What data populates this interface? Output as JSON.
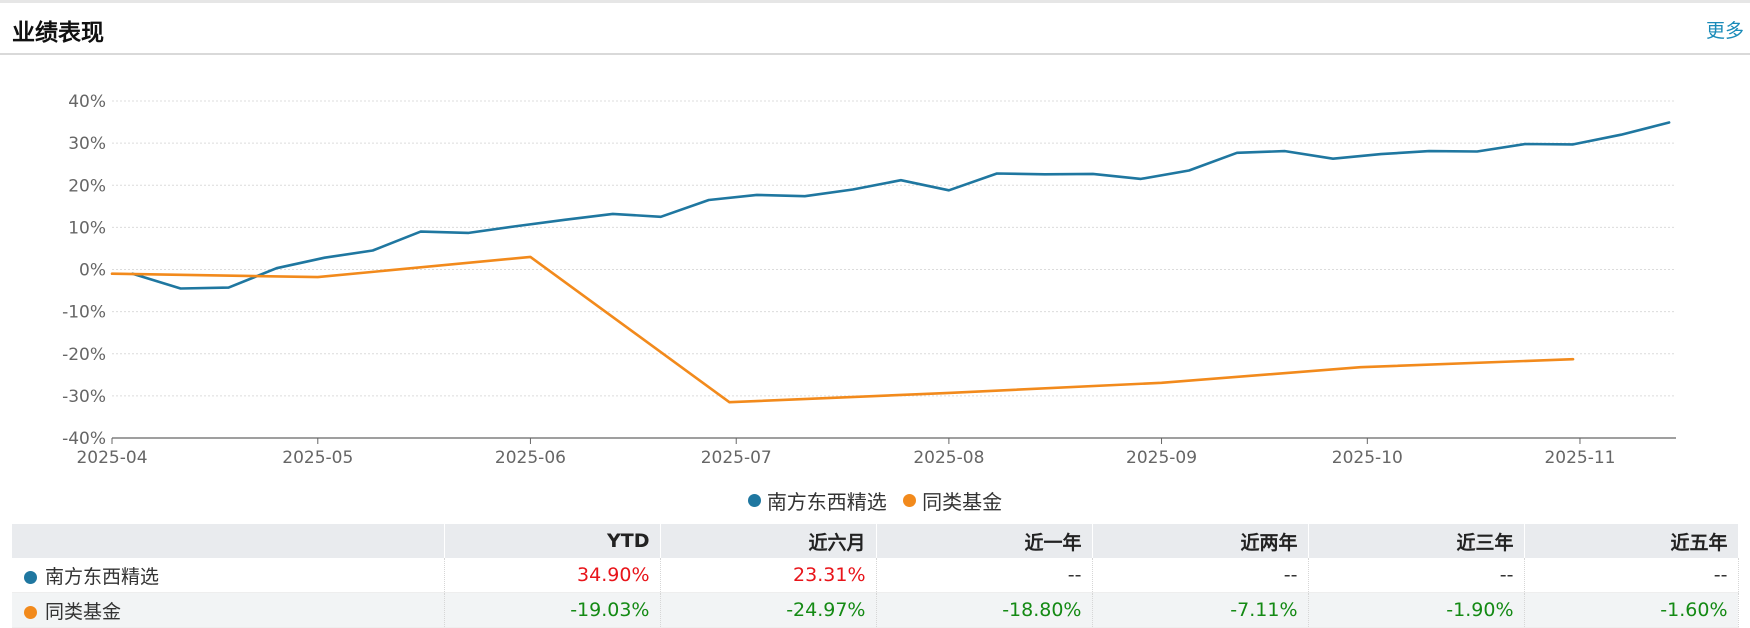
{
  "header": {
    "title": "业绩表现",
    "more_label": "更多"
  },
  "colors": {
    "fund": "#1f77a0",
    "peer": "#f28a1c",
    "positive": "#e8141a",
    "negative": "#148a14"
  },
  "chart_data": {
    "type": "line",
    "x_type": "date",
    "ylim": [
      -40,
      40
    ],
    "yticks": [
      -40,
      -30,
      -20,
      -10,
      0,
      10,
      20,
      30,
      40
    ],
    "ytick_labels": [
      "-40%",
      "-30%",
      "-20%",
      "-10%",
      "0%",
      "10%",
      "20%",
      "30%",
      "40%"
    ],
    "xticks": [
      "2025-04-01",
      "2025-05-01",
      "2025-06-01",
      "2025-07-01",
      "2025-08-01",
      "2025-09-01",
      "2025-10-01",
      "2025-11-01"
    ],
    "xtick_labels": [
      "2025-04",
      "2025-05",
      "2025-06",
      "2025-07",
      "2025-08",
      "2025-09",
      "2025-10",
      "2025-11"
    ],
    "grid": true,
    "legend_position": "bottom",
    "series": [
      {
        "name": "南方东西精选",
        "color": "#1f77a0",
        "points": [
          [
            "2025-04-04",
            -1.0
          ],
          [
            "2025-04-11",
            -4.5
          ],
          [
            "2025-04-18",
            -4.3
          ],
          [
            "2025-04-25",
            0.3
          ],
          [
            "2025-05-02",
            2.8
          ],
          [
            "2025-05-09",
            4.5
          ],
          [
            "2025-05-16",
            9.0
          ],
          [
            "2025-05-23",
            8.7
          ],
          [
            "2025-05-30",
            10.3
          ],
          [
            "2025-06-06",
            11.8
          ],
          [
            "2025-06-13",
            13.2
          ],
          [
            "2025-06-20",
            12.5
          ],
          [
            "2025-06-27",
            16.5
          ],
          [
            "2025-07-04",
            17.7
          ],
          [
            "2025-07-11",
            17.4
          ],
          [
            "2025-07-18",
            19.0
          ],
          [
            "2025-07-25",
            21.2
          ],
          [
            "2025-08-01",
            18.8
          ],
          [
            "2025-08-08",
            22.8
          ],
          [
            "2025-08-15",
            22.6
          ],
          [
            "2025-08-22",
            22.7
          ],
          [
            "2025-08-29",
            21.5
          ],
          [
            "2025-09-05",
            23.5
          ],
          [
            "2025-09-12",
            27.7
          ],
          [
            "2025-09-19",
            28.1
          ],
          [
            "2025-09-26",
            26.3
          ],
          [
            "2025-10-03",
            27.4
          ],
          [
            "2025-10-10",
            28.1
          ],
          [
            "2025-10-17",
            28.0
          ],
          [
            "2025-10-24",
            29.8
          ],
          [
            "2025-10-31",
            29.7
          ],
          [
            "2025-11-07",
            32.0
          ],
          [
            "2025-11-14",
            34.9
          ]
        ]
      },
      {
        "name": "同类基金",
        "color": "#f28a1c",
        "points": [
          [
            "2025-04-01",
            -1.0
          ],
          [
            "2025-05-01",
            -1.8
          ],
          [
            "2025-06-01",
            3.0
          ],
          [
            "2025-06-30",
            -31.5
          ],
          [
            "2025-08-01",
            -29.3
          ],
          [
            "2025-09-01",
            -26.9
          ],
          [
            "2025-09-30",
            -23.2
          ],
          [
            "2025-10-31",
            -21.3
          ]
        ]
      }
    ]
  },
  "table": {
    "headers": [
      "",
      "YTD",
      "近六月",
      "近一年",
      "近两年",
      "近三年",
      "近五年"
    ],
    "rows": [
      {
        "name": "南方东西精选",
        "values": [
          "34.90%",
          "23.31%",
          "--",
          "--",
          "--",
          "--"
        ]
      },
      {
        "name": "同类基金",
        "values": [
          "-19.03%",
          "-24.97%",
          "-18.80%",
          "-7.11%",
          "-1.90%",
          "-1.60%"
        ]
      }
    ]
  }
}
